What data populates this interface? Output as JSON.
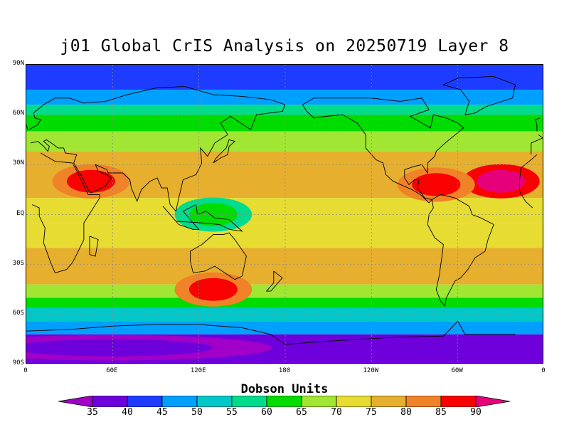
{
  "title": "j01 Global CrIS Analysis on 20250719 Layer 8",
  "map": {
    "lat_labels": [
      "90N",
      "60N",
      "30N",
      "EQ",
      "30S",
      "60S",
      "90S"
    ],
    "lon_labels": [
      "0",
      "60E",
      "120E",
      "180",
      "120W",
      "60W",
      "0"
    ],
    "grid_lines": "dotted"
  },
  "colorbar": {
    "title": "Dobson Units",
    "levels": [
      "35",
      "40",
      "45",
      "50",
      "55",
      "60",
      "65",
      "70",
      "75",
      "80",
      "85",
      "90"
    ],
    "colors": [
      "#a000c8",
      "#6e00dc",
      "#1e3cff",
      "#00a0ff",
      "#00c8c8",
      "#00dc8c",
      "#00dc00",
      "#a0e632",
      "#e6dc32",
      "#e6af2d",
      "#f08228",
      "#fa0000",
      "#e6007a"
    ]
  },
  "chart_data": {
    "type": "heatmap",
    "title": "j01 Global CrIS Analysis on 20250719 Layer 8",
    "colorbar_label": "Dobson Units",
    "x_range": [
      "0",
      "0"
    ],
    "y_range": [
      "90S",
      "90N"
    ],
    "zonal_bands": [
      {
        "lat": [
          75,
          90
        ],
        "value": 40
      },
      {
        "lat": [
          66,
          75
        ],
        "value": 45
      },
      {
        "lat": [
          60,
          66
        ],
        "value": 55
      },
      {
        "lat": [
          50,
          60
        ],
        "value": 62
      },
      {
        "lat": [
          38,
          50
        ],
        "value": 68
      },
      {
        "lat": [
          10,
          38
        ],
        "value": 76
      },
      {
        "lat": [
          -5,
          10
        ],
        "value": 70
      },
      {
        "lat": [
          -20,
          -5
        ],
        "value": 72
      },
      {
        "lat": [
          -42,
          -20
        ],
        "value": 78
      },
      {
        "lat": [
          -50,
          -42
        ],
        "value": 68
      },
      {
        "lat": [
          -56,
          -50
        ],
        "value": 60
      },
      {
        "lat": [
          -64,
          -56
        ],
        "value": 52
      },
      {
        "lat": [
          -72,
          -64
        ],
        "value": 45
      },
      {
        "lat": [
          -90,
          -72
        ],
        "value": 38
      }
    ],
    "notable_features": [
      {
        "description": "max over N. Africa / Red Sea",
        "lat": 20,
        "lon": 45,
        "value": 88
      },
      {
        "description": "max over central Atlantic",
        "lat": 20,
        "lon": -30,
        "value": 90
      },
      {
        "description": "max over Caribbean",
        "lat": 18,
        "lon": -75,
        "value": 85
      },
      {
        "description": "max south of Australia",
        "lat": -45,
        "lon": 130,
        "value": 86
      },
      {
        "description": "min over Maritime Continent",
        "lat": 0,
        "lon": 130,
        "value": 63
      },
      {
        "description": "min over Antarctica",
        "lat": -80,
        "lon": 60,
        "value": 35
      }
    ]
  }
}
